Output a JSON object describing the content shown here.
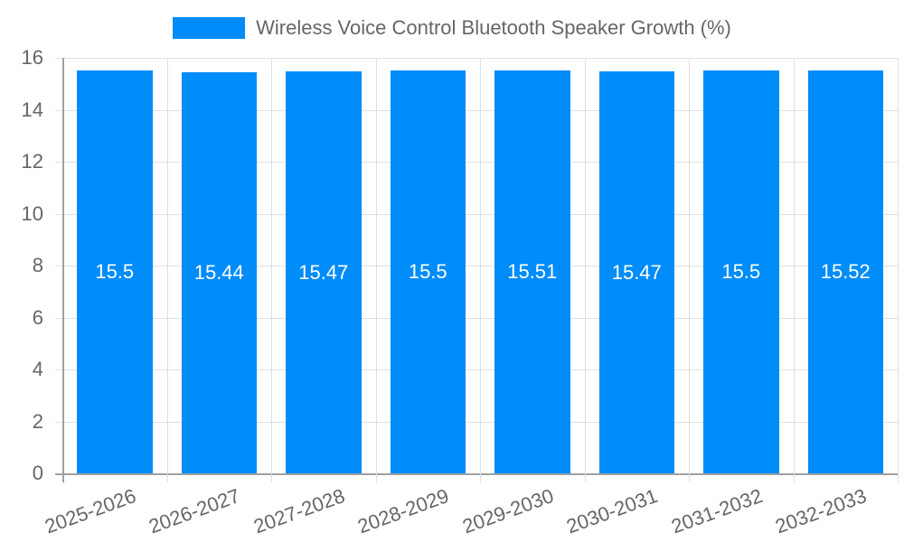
{
  "chart_data": {
    "type": "bar",
    "title": "",
    "legend": [
      "Wireless Voice Control Bluetooth Speaker Growth (%)"
    ],
    "legend_position": "top",
    "categories": [
      "2025-2026",
      "2026-2027",
      "2027-2028",
      "2028-2029",
      "2029-2030",
      "2030-2031",
      "2031-2032",
      "2032-2033"
    ],
    "series": [
      {
        "name": "Wireless Voice Control Bluetooth Speaker Growth (%)",
        "values": [
          15.5,
          15.44,
          15.47,
          15.5,
          15.51,
          15.47,
          15.5,
          15.52
        ],
        "color": "#008cf9"
      }
    ],
    "data_labels": [
      "15.5",
      "15.44",
      "15.47",
      "15.5",
      "15.51",
      "15.47",
      "15.5",
      "15.52"
    ],
    "xlabel": "",
    "ylabel": "",
    "ylim": [
      0,
      16
    ],
    "yticks": [
      "0",
      "2",
      "4",
      "6",
      "8",
      "10",
      "12",
      "14",
      "16"
    ],
    "grid": true
  },
  "legend": {
    "label": "Wireless Voice Control Bluetooth Speaker Growth (%)",
    "color": "#008cf9"
  }
}
